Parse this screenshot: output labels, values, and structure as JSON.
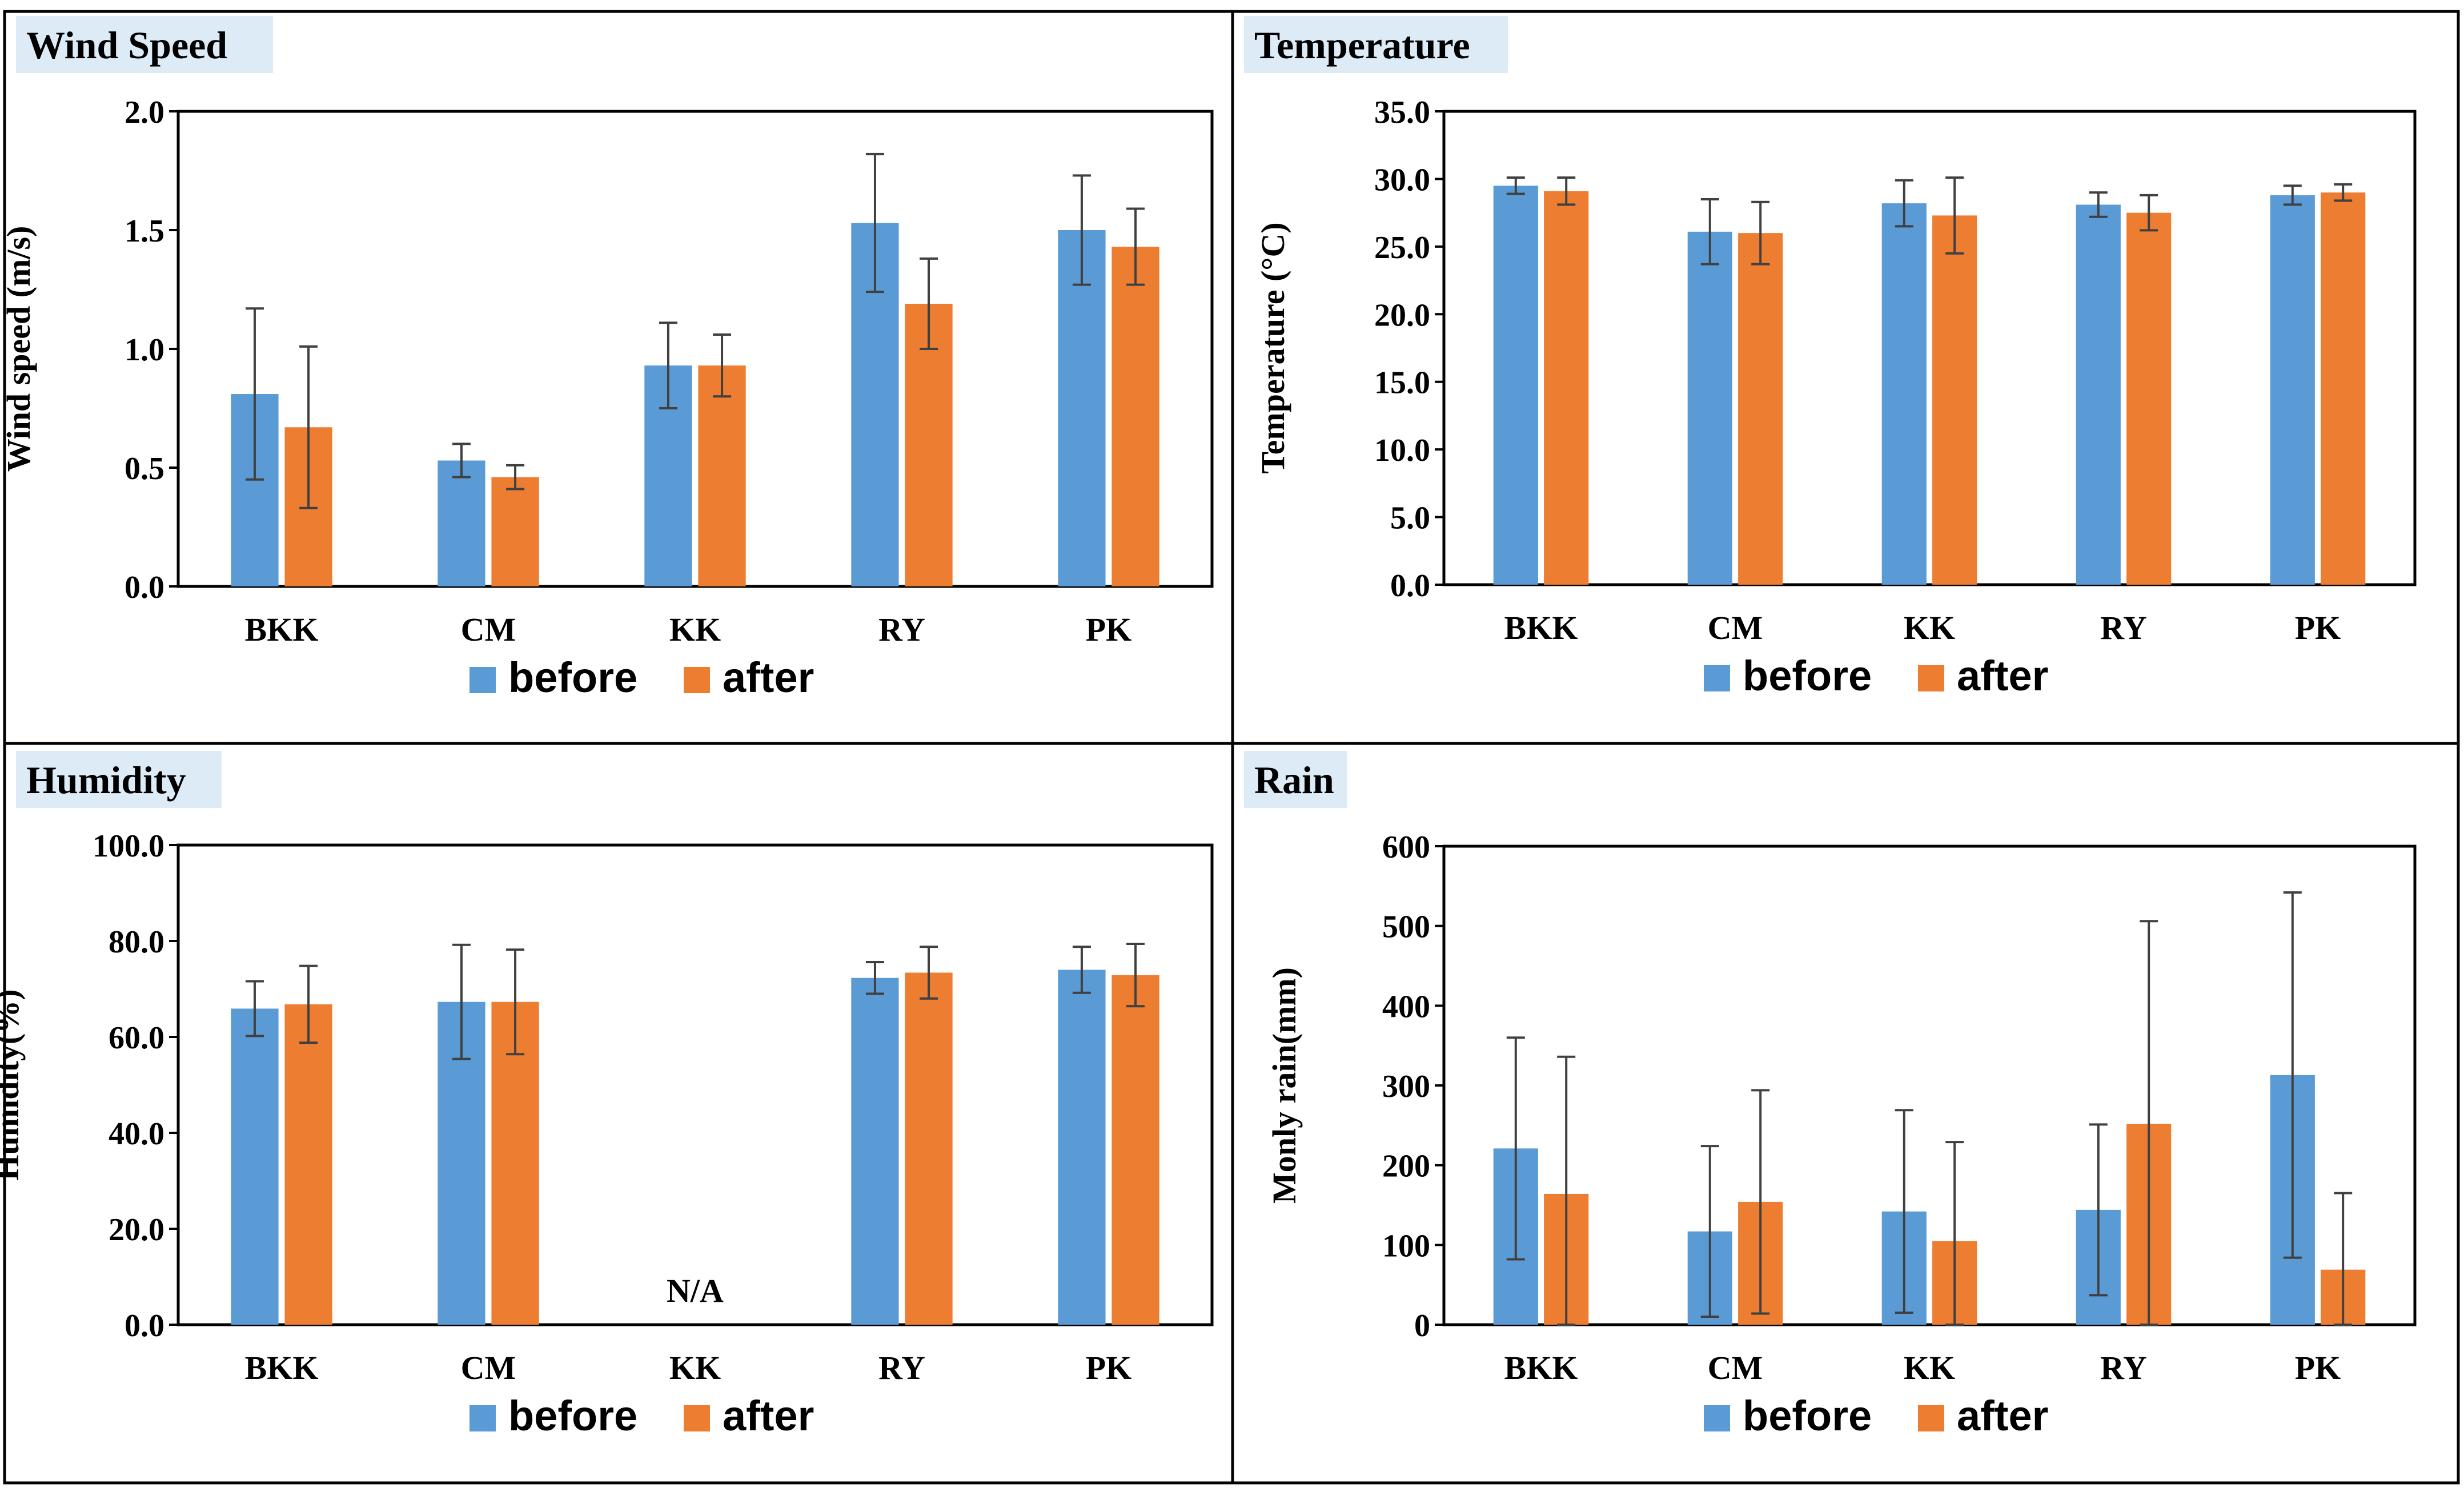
{
  "colors": {
    "before": "#5B9BD5",
    "after": "#ED7D31",
    "error_bar": "#404040",
    "title_bg": "#DDEBF7",
    "frame": "#000000",
    "axis": "#595959"
  },
  "chart_data": [
    {
      "type": "bar",
      "title": "Wind Speed",
      "xlabel": "",
      "ylabel": "Wind  speed (m/s)",
      "ylim": [
        0,
        2.0
      ],
      "yticks": [
        "0.0",
        "0.5",
        "1.0",
        "1.5",
        "2.0"
      ],
      "categories": [
        "BKK",
        "CM",
        "KK",
        "RY",
        "PK"
      ],
      "series": [
        {
          "name": "before",
          "values": [
            0.81,
            0.53,
            0.93,
            1.53,
            1.5
          ],
          "error": [
            0.36,
            0.07,
            0.18,
            0.29,
            0.23
          ]
        },
        {
          "name": "after",
          "values": [
            0.67,
            0.46,
            0.93,
            1.19,
            1.43
          ],
          "error": [
            0.34,
            0.05,
            0.13,
            0.19,
            0.16
          ]
        }
      ],
      "legend": "bottom",
      "annotations": []
    },
    {
      "type": "bar",
      "title": "Temperature",
      "xlabel": "",
      "ylabel": "Temperature (°C)",
      "ylim": [
        0,
        35.0
      ],
      "yticks": [
        "0.0",
        "5.0",
        "10.0",
        "15.0",
        "20.0",
        "25.0",
        "30.0",
        "35.0"
      ],
      "categories": [
        "BKK",
        "CM",
        "KK",
        "RY",
        "PK"
      ],
      "series": [
        {
          "name": "before",
          "values": [
            29.5,
            26.1,
            28.2,
            28.1,
            28.8
          ],
          "error": [
            0.6,
            2.4,
            1.7,
            0.9,
            0.7
          ]
        },
        {
          "name": "after",
          "values": [
            29.1,
            26.0,
            27.3,
            27.5,
            29.0
          ],
          "error": [
            1.0,
            2.3,
            2.8,
            1.3,
            0.6
          ]
        }
      ],
      "legend": "bottom",
      "annotations": []
    },
    {
      "type": "bar",
      "title": "Humidity",
      "xlabel": "",
      "ylabel": "Humidity(%)",
      "ylim": [
        0,
        100.0
      ],
      "yticks": [
        "0.0",
        "20.0",
        "40.0",
        "60.0",
        "80.0",
        "100.0"
      ],
      "categories": [
        "BKK",
        "CM",
        "KK",
        "RY",
        "PK"
      ],
      "series": [
        {
          "name": "before",
          "values": [
            65.9,
            67.3,
            null,
            72.3,
            74.0
          ],
          "error": [
            5.7,
            11.9,
            null,
            3.3,
            4.8
          ]
        },
        {
          "name": "after",
          "values": [
            66.8,
            67.3,
            null,
            73.4,
            72.9
          ],
          "error": [
            8.0,
            10.9,
            null,
            5.4,
            6.5
          ]
        }
      ],
      "legend": "bottom",
      "annotations": [
        {
          "category": "KK",
          "text": "N/A"
        }
      ]
    },
    {
      "type": "bar",
      "title": "Rain",
      "xlabel": "",
      "ylabel": "Monly rain(mm)",
      "ylim": [
        0,
        600
      ],
      "yticks": [
        "0",
        "100",
        "200",
        "300",
        "400",
        "500",
        "600"
      ],
      "categories": [
        "BKK",
        "CM",
        "KK",
        "RY",
        "PK"
      ],
      "series": [
        {
          "name": "before",
          "values": [
            221,
            117,
            142,
            144,
            313
          ],
          "error": [
            139,
            107,
            127,
            107,
            229
          ]
        },
        {
          "name": "after",
          "values": [
            164,
            154,
            105,
            252,
            69
          ],
          "error": [
            172,
            140,
            124,
            254,
            96
          ]
        }
      ],
      "legend": "bottom",
      "annotations": []
    }
  ]
}
